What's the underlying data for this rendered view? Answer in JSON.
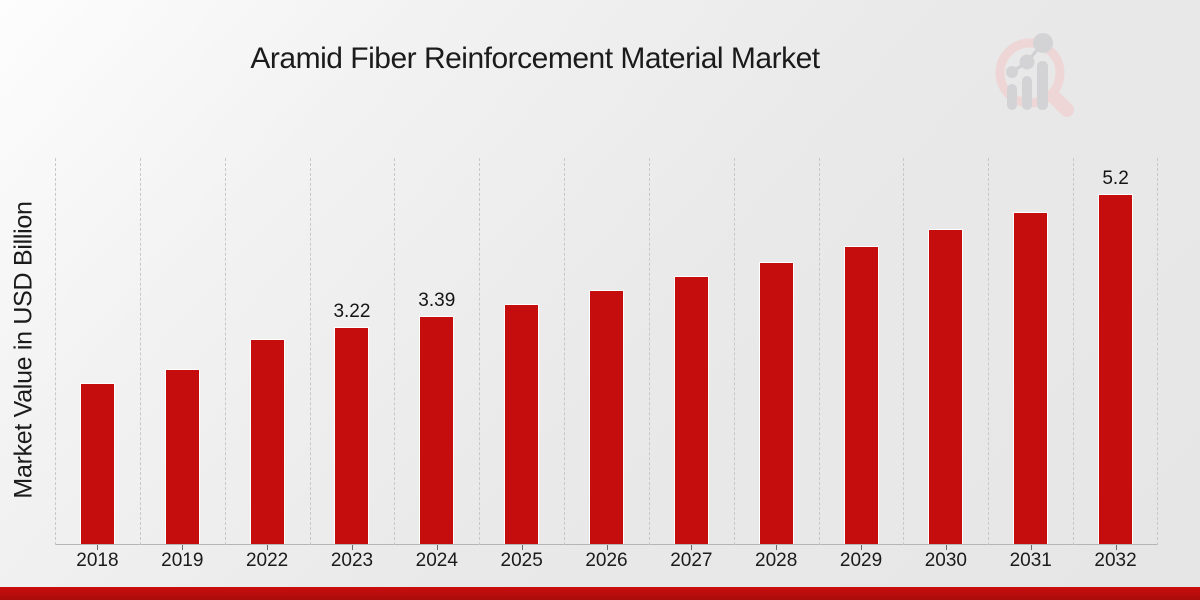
{
  "page": {
    "background_top": "#fdfdfd",
    "background_bottom": "#e6e6e6",
    "footer_strip_color": "#c60d0d"
  },
  "chart_data": {
    "type": "bar",
    "title": "Aramid Fiber Reinforcement Material Market",
    "xlabel": "",
    "ylabel": "Market Value in USD Billion",
    "categories": [
      "2018",
      "2019",
      "2022",
      "2023",
      "2024",
      "2025",
      "2026",
      "2027",
      "2028",
      "2029",
      "2030",
      "2031",
      "2032"
    ],
    "values": [
      2.39,
      2.6,
      3.04,
      3.22,
      3.39,
      3.57,
      3.77,
      3.98,
      4.19,
      4.43,
      4.68,
      4.94,
      5.2
    ],
    "data_labels": [
      "",
      "",
      "",
      "3.22",
      "3.39",
      "",
      "",
      "",
      "",
      "",
      "",
      "",
      "5.2"
    ],
    "ylim": [
      0,
      5.75
    ],
    "bar_color": "#c60d0d",
    "bar_border_color": "#ffffff",
    "grid": "vertical dashed separators between category bands, no horizontal gridlines",
    "legend": "none",
    "axis_line_color": "#b5b5b5"
  },
  "watermark": {
    "icon": "magnifier-bar-chart-logo",
    "ring_color": "#eed6d6",
    "bars_color": "#d3d3d6"
  }
}
